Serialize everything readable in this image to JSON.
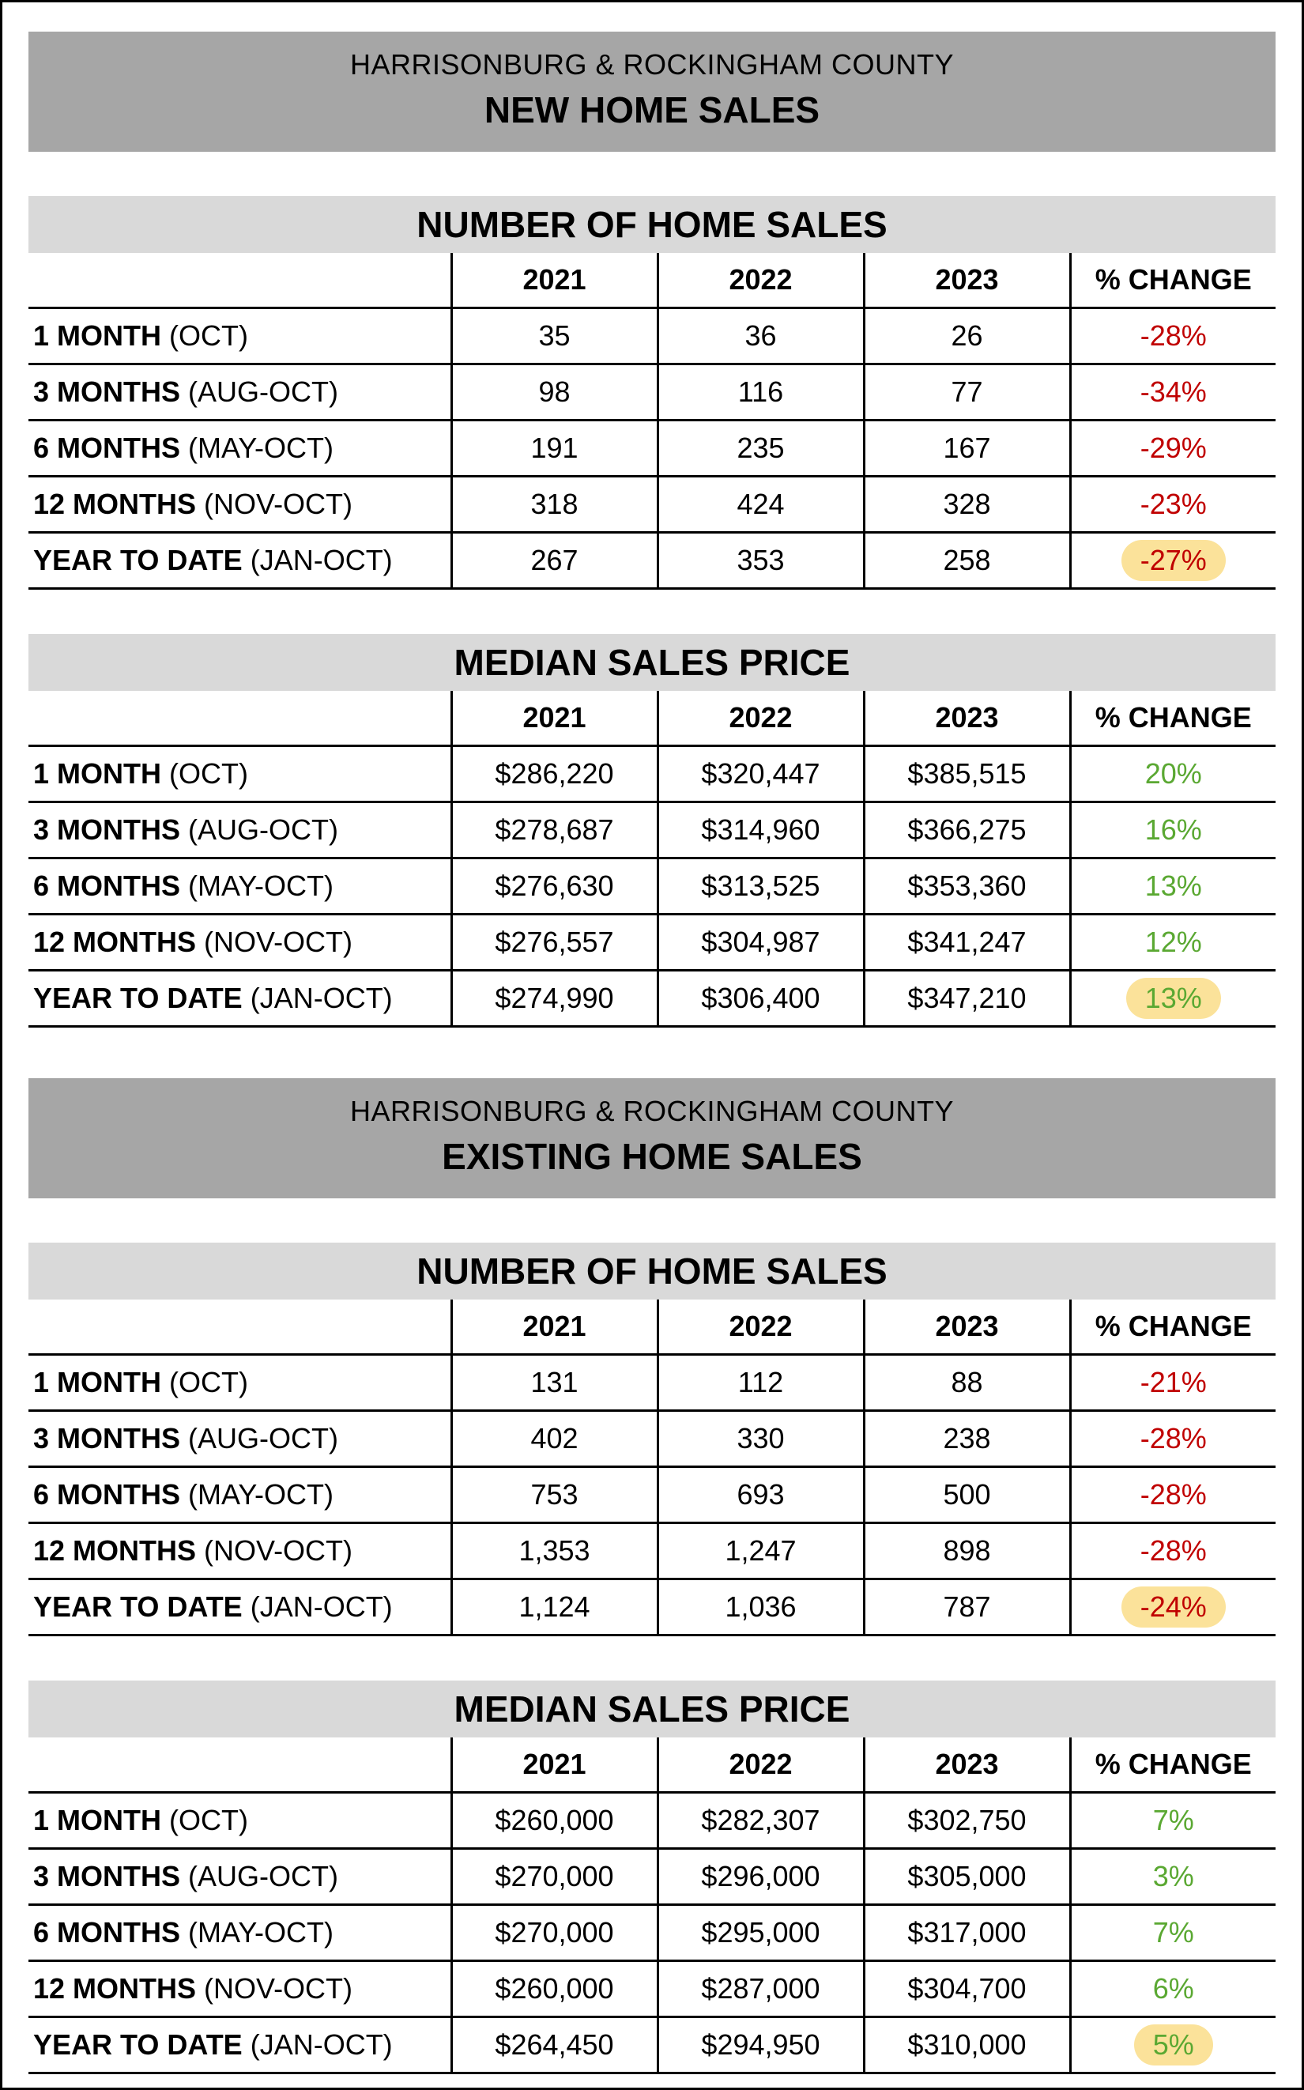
{
  "panels": [
    {
      "banner_sub": "HARRISONBURG & ROCKINGHAM COUNTY",
      "banner_title": "NEW HOME SALES",
      "tables": [
        {
          "title": "NUMBER OF HOME SALES",
          "headers": [
            "2021",
            "2022",
            "2023",
            "% CHANGE"
          ],
          "rows": [
            {
              "label_bold": "1 MONTH",
              "label_rest": " (OCT)",
              "v": [
                "35",
                "36",
                "26"
              ],
              "change": "-28%"
            },
            {
              "label_bold": "3 MONTHS",
              "label_rest": " (AUG-OCT)",
              "v": [
                "98",
                "116",
                "77"
              ],
              "change": "-34%"
            },
            {
              "label_bold": "6 MONTHS",
              "label_rest": " (MAY-OCT)",
              "v": [
                "191",
                "235",
                "167"
              ],
              "change": "-29%"
            },
            {
              "label_bold": "12 MONTHS",
              "label_rest": " (NOV-OCT)",
              "v": [
                "318",
                "424",
                "328"
              ],
              "change": "-23%"
            },
            {
              "label_bold": "YEAR TO DATE",
              "label_rest": " (JAN-OCT)",
              "v": [
                "267",
                "353",
                "258"
              ],
              "change": "-27%"
            }
          ]
        },
        {
          "title": "MEDIAN SALES PRICE",
          "headers": [
            "2021",
            "2022",
            "2023",
            "% CHANGE"
          ],
          "rows": [
            {
              "label_bold": "1 MONTH",
              "label_rest": " (OCT)",
              "v": [
                "$286,220",
                "$320,447",
                "$385,515"
              ],
              "change": "20%"
            },
            {
              "label_bold": "3 MONTHS",
              "label_rest": " (AUG-OCT)",
              "v": [
                "$278,687",
                "$314,960",
                "$366,275"
              ],
              "change": "16%"
            },
            {
              "label_bold": "6 MONTHS",
              "label_rest": " (MAY-OCT)",
              "v": [
                "$276,630",
                "$313,525",
                "$353,360"
              ],
              "change": "13%"
            },
            {
              "label_bold": "12 MONTHS",
              "label_rest": " (NOV-OCT)",
              "v": [
                "$276,557",
                "$304,987",
                "$341,247"
              ],
              "change": "12%"
            },
            {
              "label_bold": "YEAR TO DATE",
              "label_rest": " (JAN-OCT)",
              "v": [
                "$274,990",
                "$306,400",
                "$347,210"
              ],
              "change": "13%"
            }
          ]
        }
      ]
    },
    {
      "banner_sub": "HARRISONBURG & ROCKINGHAM COUNTY",
      "banner_title": "EXISTING HOME SALES",
      "tables": [
        {
          "title": "NUMBER OF HOME SALES",
          "headers": [
            "2021",
            "2022",
            "2023",
            "% CHANGE"
          ],
          "rows": [
            {
              "label_bold": "1 MONTH",
              "label_rest": " (OCT)",
              "v": [
                "131",
                "112",
                "88"
              ],
              "change": "-21%"
            },
            {
              "label_bold": "3 MONTHS",
              "label_rest": " (AUG-OCT)",
              "v": [
                "402",
                "330",
                "238"
              ],
              "change": "-28%"
            },
            {
              "label_bold": "6 MONTHS",
              "label_rest": " (MAY-OCT)",
              "v": [
                "753",
                "693",
                "500"
              ],
              "change": "-28%"
            },
            {
              "label_bold": "12 MONTHS",
              "label_rest": " (NOV-OCT)",
              "v": [
                "1,353",
                "1,247",
                "898"
              ],
              "change": "-28%"
            },
            {
              "label_bold": "YEAR TO DATE",
              "label_rest": " (JAN-OCT)",
              "v": [
                "1,124",
                "1,036",
                "787"
              ],
              "change": "-24%"
            }
          ]
        },
        {
          "title": "MEDIAN SALES PRICE",
          "headers": [
            "2021",
            "2022",
            "2023",
            "% CHANGE"
          ],
          "rows": [
            {
              "label_bold": "1 MONTH",
              "label_rest": " (OCT)",
              "v": [
                "$260,000",
                "$282,307",
                "$302,750"
              ],
              "change": "7%"
            },
            {
              "label_bold": "3 MONTHS",
              "label_rest": " (AUG-OCT)",
              "v": [
                "$270,000",
                "$296,000",
                "$305,000"
              ],
              "change": "3%"
            },
            {
              "label_bold": "6 MONTHS",
              "label_rest": " (MAY-OCT)",
              "v": [
                "$270,000",
                "$295,000",
                "$317,000"
              ],
              "change": "7%"
            },
            {
              "label_bold": "12 MONTHS",
              "label_rest": " (NOV-OCT)",
              "v": [
                "$260,000",
                "$287,000",
                "$304,700"
              ],
              "change": "6%"
            },
            {
              "label_bold": "YEAR TO DATE",
              "label_rest": " (JAN-OCT)",
              "v": [
                "$264,450",
                "$294,950",
                "$310,000"
              ],
              "change": "5%"
            }
          ]
        }
      ]
    }
  ],
  "colors": {
    "negative": "#c00000",
    "positive": "#5aa832",
    "highlight": "#fbe29a",
    "banner": "#a6a6a6",
    "section_header": "#d9d9d9"
  }
}
